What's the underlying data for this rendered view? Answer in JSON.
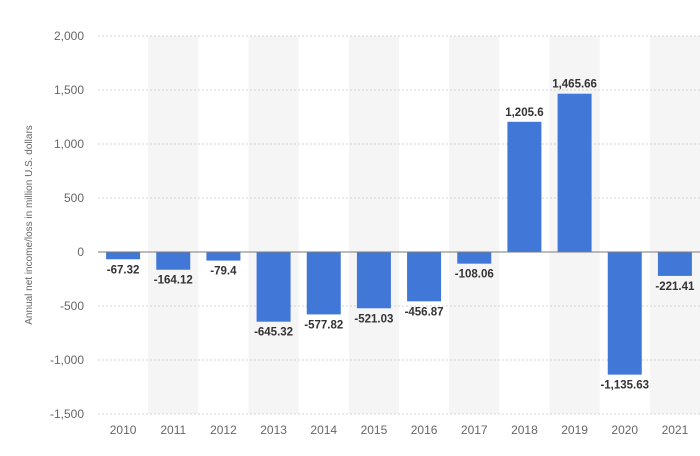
{
  "chart_data": {
    "type": "bar",
    "title": "",
    "xlabel": "",
    "ylabel": "Annual net income/loss in million U.S. dollars",
    "categories": [
      "2010",
      "2011",
      "2012",
      "2013",
      "2014",
      "2015",
      "2016",
      "2017",
      "2018",
      "2019",
      "2020",
      "2021"
    ],
    "values": [
      -67.32,
      -164.12,
      -79.4,
      -645.32,
      -577.82,
      -521.03,
      -456.87,
      -108.06,
      1205.6,
      1465.66,
      -1135.63,
      -221.41
    ],
    "value_labels": [
      "-67.32",
      "-164.12",
      "-79.4",
      "-645.32",
      "-577.82",
      "-521.03",
      "-456.87",
      "-108.06",
      "1,205.6",
      "1,465.66",
      "-1,135.63",
      "-221.41"
    ],
    "ylim": [
      -1500,
      2000
    ],
    "yticks": [
      -1500,
      -1000,
      -500,
      0,
      500,
      1000,
      1500,
      2000
    ],
    "ytick_labels": [
      "-1,500",
      "-1,000",
      "-500",
      "0",
      "500",
      "1,000",
      "1,500",
      "2,000"
    ],
    "grid": true,
    "legend": "none",
    "colors": {
      "bar": "#4177d6",
      "grid": "#d4d4d4",
      "zero_line": "#7a7a7a",
      "band": "#f5f5f5",
      "tick_text": "#666666",
      "label_text": "#333333"
    }
  }
}
